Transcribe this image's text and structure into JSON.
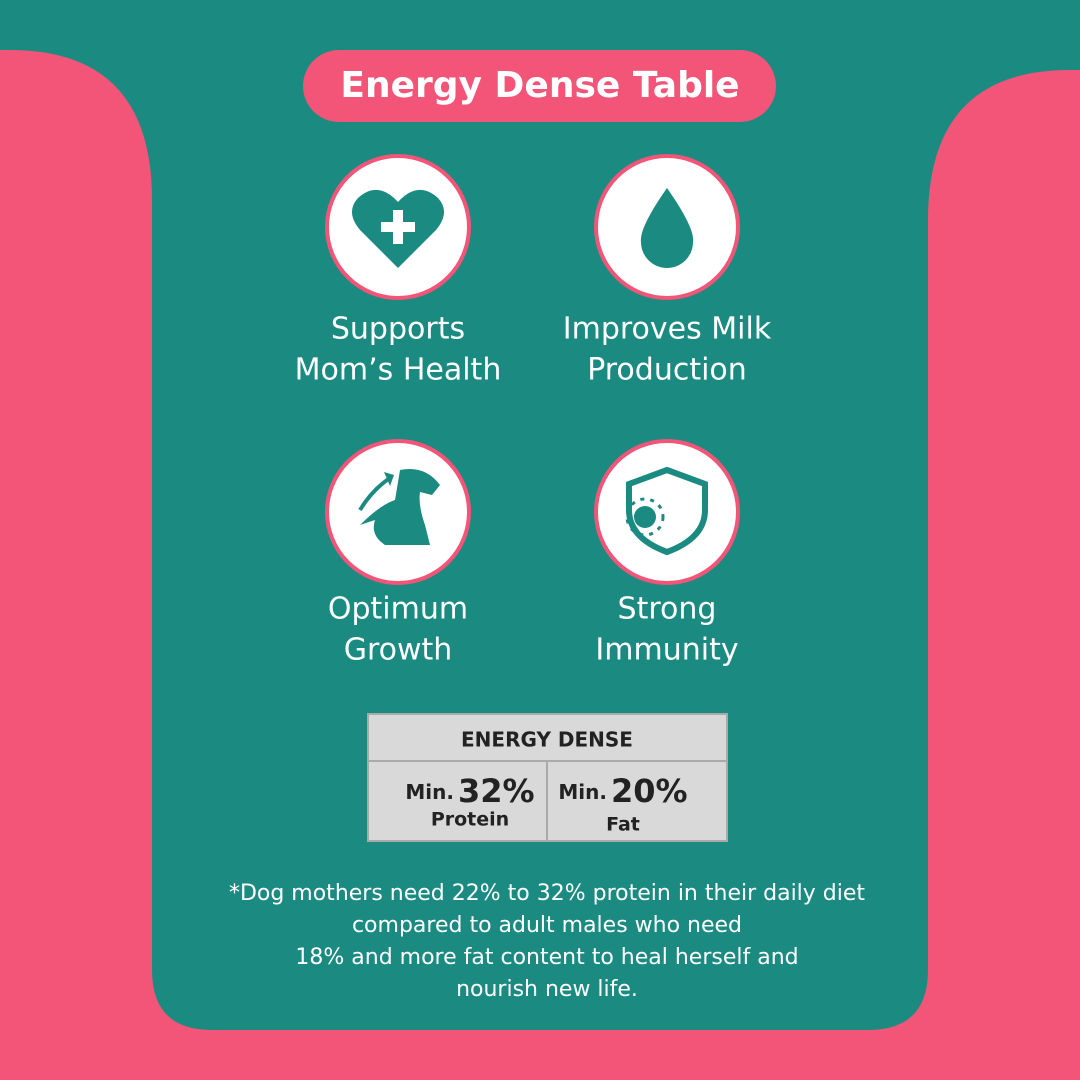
{
  "title": "Energy Dense Table",
  "features": [
    {
      "lines": [
        "Supports",
        "Mom’s Health"
      ]
    },
    {
      "lines": [
        "Improves Milk",
        "Production"
      ]
    },
    {
      "lines": [
        "Optimum",
        "Growth"
      ]
    },
    {
      "lines": [
        "Strong",
        "Immunity"
      ]
    }
  ],
  "table": {
    "header": "ENERGY DENSE",
    "cells": [
      {
        "prefix": "Min.",
        "value": "32%",
        "label": "Protein"
      },
      {
        "prefix": "Min.",
        "value": "20%",
        "label": "Fat"
      }
    ]
  },
  "footnote": [
    "*Dog mothers need 22% to 32% protein in their daily diet",
    "compared to adult males who need",
    "18% and more fat content to heal herself and",
    "nourish new life."
  ]
}
